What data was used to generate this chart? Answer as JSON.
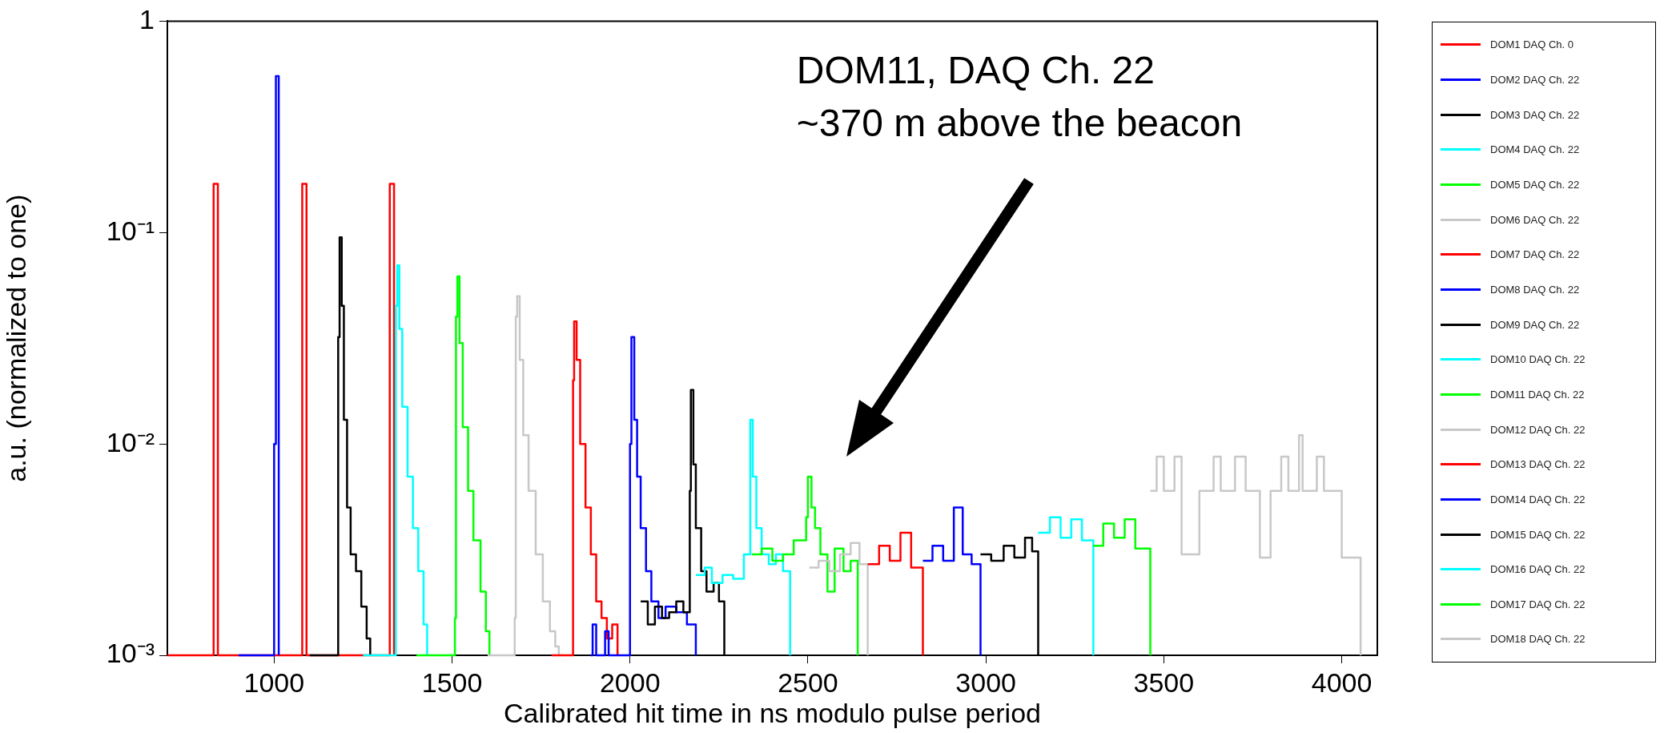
{
  "chart_data": {
    "type": "step",
    "xlabel": "Calibrated hit time in ns modulo pulse period",
    "ylabel": "a.u. (normalized to one)",
    "annotations": [
      "DOM11, DAQ Ch. 22\n~370 m above the beacon"
    ],
    "xlim": [
      700,
      4100
    ],
    "xticks": [
      1000,
      1500,
      2000,
      2500,
      3000,
      3500,
      4000
    ],
    "ylim": [
      0.001,
      1
    ],
    "yticks": [
      {
        "value": 0.001,
        "label": "10⁻³"
      },
      {
        "value": 0.01,
        "label": "10⁻²"
      },
      {
        "value": 0.1,
        "label": "10⁻¹"
      },
      1
    ],
    "log": true,
    "legend": "right",
    "series": [
      {
        "name": "DOM1 DAQ Ch. 0",
        "color": "#ff0000",
        "x": [
          700,
          830,
          842,
          1079,
          1091,
          1325,
          1337
        ],
        "values": [
          0.001,
          0.17,
          0.001,
          0.17,
          0.001,
          0.17,
          0.001
        ]
      },
      {
        "name": "DOM2 DAQ Ch. 22",
        "color": "#0000ff",
        "x": [
          900,
          1000,
          1005,
          1013
        ],
        "values": [
          0.001,
          0.01,
          0.55,
          0.001
        ]
      },
      {
        "name": "DOM3 DAQ Ch. 22",
        "color": "#000000",
        "x": [
          1100,
          1180,
          1184,
          1190,
          1196,
          1205,
          1215,
          1230,
          1245,
          1260,
          1270
        ],
        "values": [
          0.001,
          0.032,
          0.095,
          0.045,
          0.013,
          0.005,
          0.003,
          0.0025,
          0.0017,
          0.0012,
          0.001
        ]
      },
      {
        "name": "DOM4 DAQ Ch. 22",
        "color": "#00ffff",
        "x": [
          1250,
          1342,
          1346,
          1352,
          1360,
          1375,
          1390,
          1405,
          1420,
          1430
        ],
        "values": [
          0.001,
          0.045,
          0.07,
          0.035,
          0.015,
          0.007,
          0.004,
          0.0025,
          0.0014,
          0.001
        ]
      },
      {
        "name": "DOM5 DAQ Ch. 22",
        "color": "#00ff00",
        "x": [
          1400,
          1508,
          1511,
          1515,
          1521,
          1530,
          1545,
          1560,
          1580,
          1595,
          1605
        ],
        "values": [
          0.001,
          0.0015,
          0.04,
          0.062,
          0.03,
          0.012,
          0.006,
          0.0035,
          0.002,
          0.0013,
          0.001
        ]
      },
      {
        "name": "DOM6 DAQ Ch. 22",
        "color": "#c8c8c8",
        "x": [
          1600,
          1676,
          1679,
          1683,
          1690,
          1700,
          1715,
          1735,
          1755,
          1775,
          1790,
          1800
        ],
        "values": [
          0.001,
          0.0015,
          0.04,
          0.05,
          0.025,
          0.011,
          0.006,
          0.003,
          0.0018,
          0.0013,
          0.0011,
          0.001
        ]
      },
      {
        "name": "DOM7 DAQ Ch. 22",
        "color": "#ff0000",
        "x": [
          1780,
          1840,
          1843,
          1850,
          1860,
          1875,
          1890,
          1905,
          1920,
          1935,
          1950,
          1965
        ],
        "values": [
          0.001,
          0.02,
          0.038,
          0.025,
          0.01,
          0.005,
          0.003,
          0.0018,
          0.0015,
          0.0012,
          0.0014,
          0.001
        ]
      },
      {
        "name": "DOM8 DAQ Ch. 22",
        "color": "#0000ff",
        "x": [
          1890,
          1895,
          1905,
          1930,
          1940,
          2000,
          2004,
          2012,
          2020,
          2030,
          2045,
          2060,
          2080,
          2100,
          2130,
          2160,
          2185
        ],
        "values": [
          0.001,
          0.0014,
          0.001,
          0.0013,
          0.001,
          0.01,
          0.032,
          0.013,
          0.007,
          0.004,
          0.0025,
          0.0018,
          0.0015,
          0.0017,
          0.0016,
          0.0014,
          0.001
        ]
      },
      {
        "name": "DOM9 DAQ Ch. 22",
        "color": "#000000",
        "x": [
          2030,
          2050,
          2070,
          2090,
          2110,
          2130,
          2150,
          2168,
          2171,
          2178,
          2185,
          2200,
          2215,
          2235,
          2250,
          2265
        ],
        "values": [
          0.0018,
          0.0014,
          0.0017,
          0.0015,
          0.0016,
          0.0018,
          0.0016,
          0.006,
          0.018,
          0.008,
          0.004,
          0.0025,
          0.002,
          0.0022,
          0.0018,
          0.001
        ]
      },
      {
        "name": "DOM10 DAQ Ch. 22",
        "color": "#00ffff",
        "x": [
          2185,
          2210,
          2230,
          2260,
          2290,
          2320,
          2338,
          2345,
          2355,
          2370,
          2390,
          2410,
          2430,
          2450
        ],
        "values": [
          0.0024,
          0.0026,
          0.0022,
          0.0024,
          0.0023,
          0.003,
          0.013,
          0.007,
          0.004,
          0.003,
          0.0027,
          0.003,
          0.0025,
          0.001
        ]
      },
      {
        "name": "DOM11 DAQ Ch. 22",
        "color": "#00ff00",
        "x": [
          2342,
          2370,
          2400,
          2430,
          2460,
          2495,
          2500,
          2510,
          2520,
          2535,
          2555,
          2575,
          2600,
          2620,
          2640
        ],
        "values": [
          0.003,
          0.0032,
          0.0028,
          0.003,
          0.0035,
          0.0045,
          0.007,
          0.005,
          0.004,
          0.003,
          0.002,
          0.0032,
          0.0025,
          0.0028,
          0.001
        ]
      },
      {
        "name": "DOM12 DAQ Ch. 22",
        "color": "#c8c8c8",
        "x": [
          2504,
          2530,
          2560,
          2590,
          2620,
          2645,
          2668
        ],
        "values": [
          0.0026,
          0.0028,
          0.0025,
          0.003,
          0.0034,
          0.0027,
          0.001
        ]
      },
      {
        "name": "DOM13 DAQ Ch. 22",
        "color": "#ff0000",
        "x": [
          2668,
          2700,
          2730,
          2760,
          2790,
          2823
        ],
        "values": [
          0.0027,
          0.0033,
          0.0028,
          0.0038,
          0.0026,
          0.001
        ]
      },
      {
        "name": "DOM14 DAQ Ch. 22",
        "color": "#0000ff",
        "x": [
          2823,
          2850,
          2880,
          2910,
          2935,
          2960,
          2985
        ],
        "values": [
          0.0028,
          0.0033,
          0.0028,
          0.005,
          0.003,
          0.0027,
          0.001
        ]
      },
      {
        "name": "DOM15 DAQ Ch. 22",
        "color": "#000000",
        "x": [
          2985,
          3015,
          3050,
          3080,
          3110,
          3130,
          3147
        ],
        "values": [
          0.003,
          0.0028,
          0.0033,
          0.0029,
          0.0036,
          0.0031,
          0.001
        ]
      },
      {
        "name": "DOM16 DAQ Ch. 22",
        "color": "#00ffff",
        "x": [
          3147,
          3180,
          3210,
          3240,
          3270,
          3302
        ],
        "values": [
          0.0038,
          0.0045,
          0.0036,
          0.0044,
          0.0035,
          0.001
        ]
      },
      {
        "name": "DOM17 DAQ Ch. 22",
        "color": "#00ff00",
        "x": [
          3302,
          3330,
          3360,
          3390,
          3420,
          3462
        ],
        "values": [
          0.0033,
          0.0042,
          0.0036,
          0.0044,
          0.0032,
          0.001
        ]
      },
      {
        "name": "DOM18 DAQ Ch. 22",
        "color": "#c8c8c8",
        "x": [
          3462,
          3480,
          3500,
          3530,
          3550,
          3600,
          3640,
          3660,
          3700,
          3730,
          3770,
          3800,
          3830,
          3850,
          3880,
          3890,
          3930,
          3950,
          4000,
          4053
        ],
        "values": [
          0.006,
          0.0087,
          0.006,
          0.0087,
          0.003,
          0.006,
          0.0087,
          0.006,
          0.0087,
          0.006,
          0.0029,
          0.006,
          0.0087,
          0.006,
          0.011,
          0.006,
          0.0087,
          0.006,
          0.0029,
          0.001
        ]
      }
    ]
  }
}
